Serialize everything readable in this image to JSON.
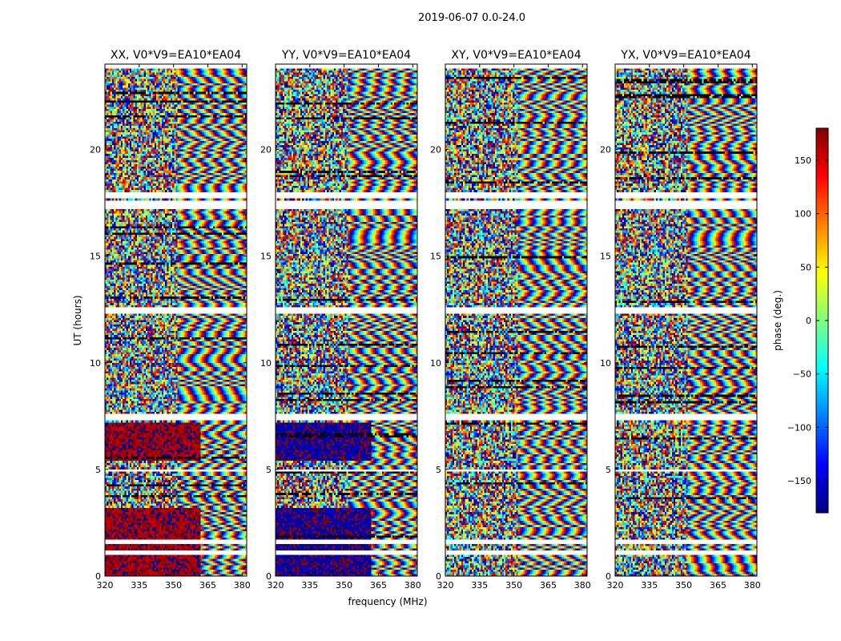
{
  "chart_data": {
    "type": "heatmap",
    "suptitle": "2019-06-07 0.0-24.0",
    "xlabel": "frequency (MHz)",
    "ylabel": "UT (hours)",
    "xlim": [
      320,
      382
    ],
    "ylim": [
      0,
      24
    ],
    "xticks": [
      320,
      335,
      350,
      365,
      380
    ],
    "yticks": [
      0,
      5,
      10,
      15,
      20
    ],
    "panels": [
      {
        "title": "XX, V0*V9=EA10*EA04",
        "lowband_phase": 170
      },
      {
        "title": "YY, V0*V9=EA10*EA04",
        "lowband_phase": -170
      },
      {
        "title": "XY, V0*V9=EA10*EA04",
        "lowband_phase": null
      },
      {
        "title": "YX, V0*V9=EA10*EA04",
        "lowband_phase": null
      }
    ],
    "colorbar": {
      "label": "phase (deg.)",
      "range": [
        -180,
        180
      ],
      "ticks": [
        -150,
        -100,
        -50,
        0,
        50,
        100,
        150
      ],
      "tick_labels": [
        "−150",
        "−100",
        "−50",
        "0",
        "50",
        "100",
        "150"
      ],
      "colormap": "jet"
    },
    "gaps_hours": [
      [
        0.95,
        1.15
      ],
      [
        1.45,
        1.65
      ],
      [
        4.9,
        5.05
      ],
      [
        7.35,
        7.6
      ],
      [
        12.3,
        12.55
      ],
      [
        17.2,
        17.6
      ],
      [
        17.7,
        17.95
      ],
      [
        23.8,
        23.95
      ]
    ]
  }
}
